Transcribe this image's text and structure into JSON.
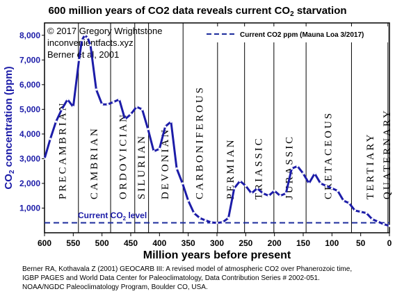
{
  "chart_data": {
    "type": "line",
    "title": "600 million years of CO2 data reveals current CO",
    "title_sub": "2",
    "title_end": " starvation",
    "xlabel": "Million years before present",
    "ylabel_main": "CO",
    "ylabel_sub": "2",
    "ylabel_end": " concentration (ppm)",
    "xlim": [
      600,
      0
    ],
    "ylim": [
      0,
      8500
    ],
    "x_ticks": [
      600,
      550,
      500,
      450,
      400,
      350,
      300,
      250,
      200,
      150,
      100,
      50,
      0
    ],
    "x_tick_labels": [
      "600",
      "550",
      "500",
      "450",
      "400",
      "350",
      "300",
      "250",
      "200",
      "150",
      "100",
      "50",
      "0"
    ],
    "y_ticks": [
      1000,
      2000,
      3000,
      4000,
      5000,
      6000,
      7000,
      8000
    ],
    "y_tick_labels": [
      "1,000",
      "2,000",
      "3,000",
      "4,000",
      "5,000",
      "6,000",
      "7,000",
      "8,000"
    ],
    "grid": false,
    "notes": [
      "© 2017 Gregory Wrightstone",
      "inconvenientfacts.xyz",
      "Berner et al, 2001"
    ],
    "legend": {
      "label": "Current CO2 ppm (Mauna Loa 3/2017)",
      "position": "top-right",
      "color": "#1c2c9c"
    },
    "current_level": {
      "value": 406,
      "label_main": "Current CO",
      "label_sub": "2",
      "label_end": " level"
    },
    "line_color": "#1c1ca8",
    "boundaries": [
      541,
      485,
      443,
      419,
      359,
      299,
      252,
      201,
      145,
      66,
      2.6
    ],
    "periods": [
      {
        "label": "PRECAMBRIAN",
        "x": 569
      },
      {
        "label": "CAMBRIAN",
        "x": 514
      },
      {
        "label": "ORDOVICIAN",
        "x": 464
      },
      {
        "label": "SILURIAN",
        "x": 432
      },
      {
        "label": "DEVONIAN",
        "x": 391
      },
      {
        "label": "CARBONIFEROUS",
        "x": 331
      },
      {
        "label": "PERMIAN",
        "x": 277
      },
      {
        "label": "TRIASSIC",
        "x": 228
      },
      {
        "label": "JURASSIC",
        "x": 175
      },
      {
        "label": "CRETACEOUS",
        "x": 107
      },
      {
        "label": "TERTIARY",
        "x": 34
      },
      {
        "label": "QUATERNARY",
        "x": 5
      }
    ],
    "series": [
      {
        "x": [
          600,
          590,
          580,
          570,
          560,
          550,
          540,
          535,
          530,
          525,
          520,
          510,
          500,
          490,
          480,
          470,
          460,
          450,
          440,
          430,
          420,
          410,
          400,
          390,
          380,
          370,
          360,
          350,
          340,
          330,
          320,
          310,
          300,
          290,
          280,
          270,
          260,
          250,
          240,
          230,
          220,
          210,
          200,
          190,
          180,
          170,
          160,
          150,
          140,
          130,
          120,
          110,
          100,
          90,
          80,
          70,
          60,
          50,
          40,
          30,
          20,
          10,
          0
        ],
        "y": [
          3000,
          3800,
          4500,
          5000,
          5400,
          5100,
          7000,
          7800,
          8000,
          7900,
          7600,
          5800,
          5200,
          5200,
          5300,
          5400,
          4600,
          4800,
          5100,
          5000,
          4200,
          3300,
          3400,
          4300,
          4500,
          2600,
          2000,
          1300,
          800,
          600,
          500,
          420,
          400,
          430,
          600,
          1800,
          2100,
          1900,
          1600,
          1800,
          1600,
          1500,
          1700,
          1500,
          1600,
          2600,
          2700,
          2400,
          2000,
          2400,
          2000,
          1900,
          1800,
          1700,
          1300,
          1200,
          900,
          850,
          800,
          550,
          450,
          350,
          280
        ]
      }
    ],
    "sources": [
      "Berner RA, Kothavala Z (2001) GEOCARB III: A revised model of atmospheric CO2 over Phanerozoic time,",
      "IGBP PAGES and World Data Center for Paleoclimatology, Data Contribution Series # 2002-051.",
      "NOAA/NGDC Paleoclimatology Program, Boulder CO, USA."
    ]
  }
}
